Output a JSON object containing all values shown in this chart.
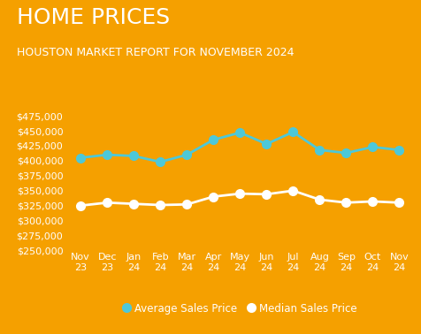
{
  "title": "HOME PRICES",
  "subtitle": "HOUSTON MARKET REPORT FOR NOVEMBER 2024",
  "background_color": "#F5A000",
  "months": [
    "Nov\n23",
    "Dec\n23",
    "Jan\n24",
    "Feb\n24",
    "Mar\n24",
    "Apr\n24",
    "May\n24",
    "Jun\n24",
    "Jul\n24",
    "Aug\n24",
    "Sep\n24",
    "Oct\n24",
    "Nov\n24"
  ],
  "avg_prices": [
    405000,
    410000,
    408000,
    398000,
    410000,
    435000,
    447000,
    428000,
    448000,
    418000,
    413000,
    423000,
    418000
  ],
  "med_prices": [
    325000,
    330000,
    328000,
    326000,
    327000,
    340000,
    345000,
    344000,
    350000,
    335000,
    330000,
    332000,
    330000
  ],
  "avg_color": "#4DC8D8",
  "med_color": "#FFFFFF",
  "ylim_min": 250000,
  "ylim_max": 490000,
  "yticks": [
    250000,
    275000,
    300000,
    325000,
    350000,
    375000,
    400000,
    425000,
    450000,
    475000
  ],
  "title_fontsize": 18,
  "subtitle_fontsize": 9,
  "tick_fontsize": 8,
  "legend_label_avg": "Average Sales Price",
  "legend_label_med": "Median Sales Price",
  "marker_size_avg": 7,
  "marker_size_med": 7,
  "line_width": 2.0
}
